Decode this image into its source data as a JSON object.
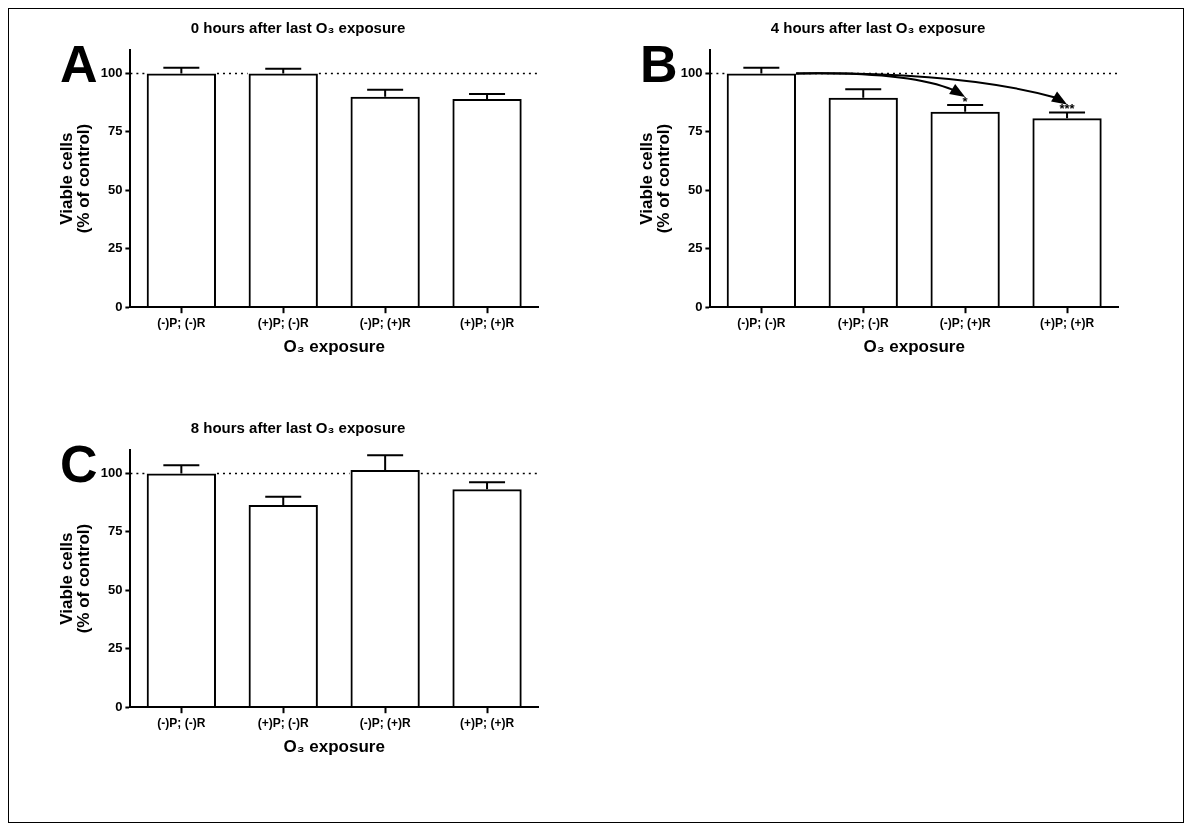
{
  "chart_data": [
    {
      "type": "bar",
      "title": "0 hours after last O₃ exposure",
      "xlabel": "O₃ exposure",
      "ylabel": "Viable cells\n(% of control)",
      "categories": [
        "(-)P; (-)R",
        "(+)P; (-)R",
        "(-)P; (+)R",
        "(+)P; (+)R"
      ],
      "values": [
        100,
        100,
        90,
        89
      ],
      "errors": [
        2.4,
        2,
        3,
        2.2
      ],
      "color": "#000000",
      "ylim": [
        0,
        110
      ],
      "yticks": [
        0,
        25,
        50,
        75,
        100
      ],
      "grid": false,
      "legend": false,
      "ref_lines": [
        {
          "axis": "y",
          "value": 100,
          "line_style": "dotted",
          "color": "#000000"
        }
      ],
      "annotations": [
        "A"
      ]
    },
    {
      "type": "bar",
      "title": "4 hours after last O₃ exposure",
      "xlabel": "O₃ exposure",
      "ylabel": "Viable cells\n(% of control)",
      "categories": [
        "(-)P; (-)R",
        "(+)P; (-)R",
        "(-)P; (+)R",
        "(+)P; (+)R"
      ],
      "values": [
        100,
        89.6,
        83.6,
        80.8
      ],
      "errors": [
        2.4,
        3.6,
        2.9,
        2.5
      ],
      "color": "#000000",
      "ylim": [
        0,
        110
      ],
      "yticks": [
        0,
        25,
        50,
        75,
        100
      ],
      "grid": false,
      "legend": false,
      "ref_lines": [
        {
          "axis": "y",
          "value": 100,
          "line_style": "dotted",
          "color": "#000000"
        }
      ],
      "annotations": [
        "B",
        {
          "text": "*",
          "x": "(-)P; (+)R",
          "y": 86.5
        },
        {
          "text": "***",
          "x": "(+)P; (+)R",
          "y": 83.3
        }
      ]
    },
    {
      "type": "bar",
      "title": "8 hours after last O₃ exposure",
      "xlabel": "O₃ exposure",
      "ylabel": "Viable cells\n(% of control)",
      "categories": [
        "(-)P; (-)R",
        "(+)P; (-)R",
        "(-)P; (+)R",
        "(+)P; (+)R"
      ],
      "values": [
        100,
        86.5,
        101.4,
        93.2
      ],
      "errors": [
        3.5,
        3.5,
        6.4,
        3
      ],
      "color": "#000000",
      "ylim": [
        0,
        110
      ],
      "yticks": [
        0,
        25,
        50,
        75,
        100
      ],
      "grid": false,
      "legend": false,
      "ref_lines": [
        {
          "axis": "y",
          "value": 100,
          "line_style": "dotted",
          "color": "#000000"
        }
      ],
      "annotations": [
        "C"
      ]
    }
  ]
}
